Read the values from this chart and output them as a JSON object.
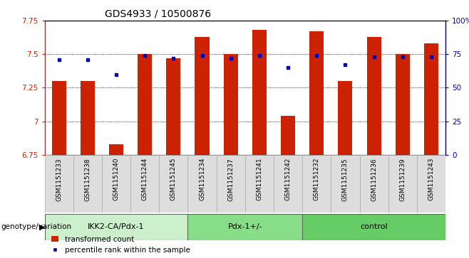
{
  "title": "GDS4933 / 10500876",
  "samples": [
    "GSM1151233",
    "GSM1151238",
    "GSM1151240",
    "GSM1151244",
    "GSM1151245",
    "GSM1151234",
    "GSM1151237",
    "GSM1151241",
    "GSM1151242",
    "GSM1151232",
    "GSM1151235",
    "GSM1151236",
    "GSM1151239",
    "GSM1151243"
  ],
  "red_values": [
    7.3,
    7.3,
    6.83,
    7.5,
    7.47,
    7.63,
    7.5,
    7.68,
    7.04,
    7.67,
    7.3,
    7.63,
    7.5,
    7.58
  ],
  "blue_values": [
    71,
    71,
    60,
    74,
    72,
    74,
    72,
    74,
    65,
    74,
    67,
    73,
    73,
    73
  ],
  "ylim_left": [
    6.75,
    7.75
  ],
  "ylim_right": [
    0,
    100
  ],
  "yticks_left": [
    6.75,
    7.0,
    7.25,
    7.5,
    7.75
  ],
  "ytick_labels_left": [
    "6.75",
    "7",
    "7.25",
    "7.5",
    "7.75"
  ],
  "yticks_right": [
    0,
    25,
    50,
    75,
    100
  ],
  "ytick_labels_right": [
    "0",
    "25",
    "50",
    "75",
    "100%"
  ],
  "groups": [
    {
      "label": "IKK2-CA/Pdx-1",
      "start": 0,
      "end": 5,
      "color": "#ccf0cc"
    },
    {
      "label": "Pdx-1+/-",
      "start": 5,
      "end": 9,
      "color": "#88dd88"
    },
    {
      "label": "control",
      "start": 9,
      "end": 14,
      "color": "#66cc66"
    }
  ],
  "group_label_prefix": "genotype/variation",
  "bar_color": "#cc2200",
  "dot_color": "#0000bb",
  "bar_bottom": 6.75,
  "legend_red": "transformed count",
  "legend_blue": "percentile rank within the sample",
  "background_color": "#ffffff"
}
